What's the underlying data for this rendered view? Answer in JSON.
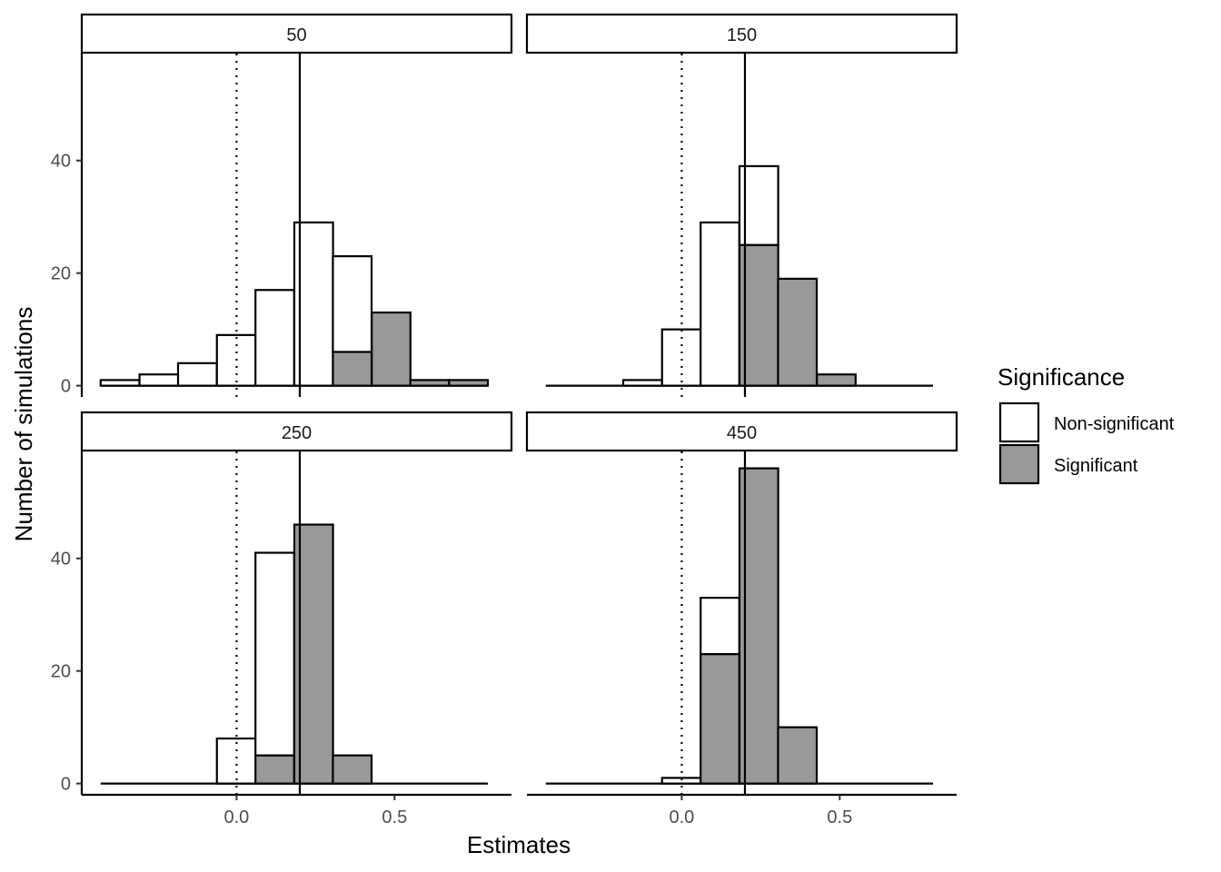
{
  "chart_data": {
    "type": "bar",
    "subtype": "faceted stacked histogram",
    "title": "",
    "xlabel": "Estimates",
    "ylabel": "Number of simulations",
    "xlim": [
      -0.49,
      0.87
    ],
    "ylim": [
      -2,
      59
    ],
    "x_ticks": [
      0.0,
      0.5
    ],
    "x_tick_labels": [
      "0.0",
      "0.5"
    ],
    "y_ticks": [
      0,
      20,
      40
    ],
    "y_tick_labels": [
      "0",
      "20",
      "40"
    ],
    "bin_width": 0.1225,
    "grid": false,
    "legend": {
      "title": "Significance",
      "position": "right",
      "entries": [
        {
          "label": "Non-significant",
          "color": "#ffffff"
        },
        {
          "label": "Significant",
          "color": "#999999"
        }
      ]
    },
    "reference_lines": [
      {
        "x": 0.0,
        "style": "dotted"
      },
      {
        "x": 0.2,
        "style": "solid"
      }
    ],
    "series_colors": {
      "Non-significant": "#ffffff",
      "Significant": "#999999",
      "outline": "#000000"
    },
    "facets": [
      {
        "label": "50",
        "bin_centers": [
          -0.369,
          -0.246,
          -0.124,
          -0.001,
          0.121,
          0.244,
          0.366,
          0.489,
          0.611,
          0.734
        ],
        "non_significant": [
          1,
          2,
          4,
          9,
          17,
          29,
          17,
          0,
          0,
          0
        ],
        "significant": [
          0,
          0,
          0,
          0,
          0,
          0,
          6,
          13,
          1,
          1
        ]
      },
      {
        "label": "150",
        "bin_centers": [
          -0.369,
          -0.246,
          -0.124,
          -0.001,
          0.121,
          0.244,
          0.366,
          0.489,
          0.611,
          0.734
        ],
        "non_significant": [
          0,
          0,
          1,
          10,
          29,
          14,
          0,
          0,
          0,
          0
        ],
        "significant": [
          0,
          0,
          0,
          0,
          0,
          25,
          19,
          2,
          0,
          0
        ]
      },
      {
        "label": "250",
        "bin_centers": [
          -0.369,
          -0.246,
          -0.124,
          -0.001,
          0.121,
          0.244,
          0.366,
          0.489,
          0.611,
          0.734
        ],
        "non_significant": [
          0,
          0,
          0,
          8,
          36,
          0,
          0,
          0,
          0,
          0
        ],
        "significant": [
          0,
          0,
          0,
          0,
          5,
          46,
          5,
          0,
          0,
          0
        ]
      },
      {
        "label": "450",
        "bin_centers": [
          -0.369,
          -0.246,
          -0.124,
          -0.001,
          0.121,
          0.244,
          0.366,
          0.489,
          0.611,
          0.734
        ],
        "non_significant": [
          0,
          0,
          0,
          1,
          10,
          0,
          0,
          0,
          0,
          0
        ],
        "significant": [
          0,
          0,
          0,
          0,
          23,
          56,
          10,
          0,
          0,
          0
        ]
      }
    ]
  }
}
